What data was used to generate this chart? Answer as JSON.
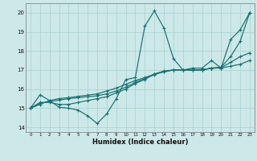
{
  "xlabel": "Humidex (Indice chaleur)",
  "bg_color": "#cce8e8",
  "line_color": "#1a7070",
  "grid_color": "#aad0d0",
  "xlim": [
    -0.5,
    23.5
  ],
  "ylim": [
    13.75,
    20.5
  ],
  "yticks": [
    14,
    15,
    16,
    17,
    18,
    19,
    20
  ],
  "xticks": [
    0,
    1,
    2,
    3,
    4,
    5,
    6,
    7,
    8,
    9,
    10,
    11,
    12,
    13,
    14,
    15,
    16,
    17,
    18,
    19,
    20,
    21,
    22,
    23
  ],
  "lines": [
    [
      15.0,
      15.7,
      15.4,
      15.05,
      15.0,
      14.9,
      14.6,
      14.2,
      14.7,
      15.5,
      16.5,
      16.6,
      19.3,
      20.1,
      19.2,
      17.6,
      17.0,
      17.1,
      17.1,
      17.5,
      17.1,
      18.6,
      19.1,
      20.0
    ],
    [
      15.0,
      15.3,
      15.3,
      15.2,
      15.2,
      15.3,
      15.4,
      15.5,
      15.6,
      15.8,
      16.0,
      16.3,
      16.5,
      16.8,
      16.9,
      17.0,
      17.0,
      17.0,
      17.0,
      17.1,
      17.1,
      17.2,
      17.3,
      17.5
    ],
    [
      15.0,
      15.2,
      15.4,
      15.5,
      15.55,
      15.62,
      15.68,
      15.75,
      15.9,
      16.05,
      16.25,
      16.45,
      16.6,
      16.78,
      16.95,
      17.0,
      17.0,
      17.0,
      17.0,
      17.1,
      17.15,
      17.7,
      18.5,
      20.0
    ],
    [
      15.0,
      15.25,
      15.35,
      15.42,
      15.5,
      15.55,
      15.6,
      15.65,
      15.75,
      15.9,
      16.1,
      16.35,
      16.55,
      16.75,
      16.92,
      17.0,
      17.0,
      17.0,
      17.0,
      17.1,
      17.12,
      17.4,
      17.7,
      17.9
    ]
  ]
}
